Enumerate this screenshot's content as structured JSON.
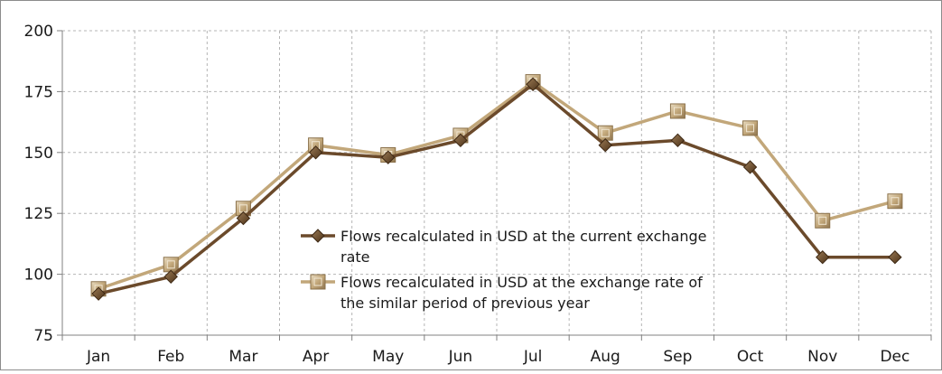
{
  "chart_data": {
    "type": "line",
    "title": "",
    "xlabel": "",
    "ylabel": "",
    "categories": [
      "Jan",
      "Feb",
      "Mar",
      "Apr",
      "May",
      "Jun",
      "Jul",
      "Aug",
      "Sep",
      "Oct",
      "Nov",
      "Dec"
    ],
    "ylim": [
      75,
      200
    ],
    "yticks": [
      "75",
      "100",
      "125",
      "150",
      "175",
      "200"
    ],
    "grid": true,
    "legend_position": "center",
    "series": [
      {
        "name_lines": [
          "Flows recalculated in USD at the current exchange",
          "rate"
        ],
        "marker": "diamond",
        "color": "#6b4a2b",
        "values": [
          92,
          99,
          123,
          150,
          148,
          155,
          178,
          153,
          155,
          144,
          107,
          107
        ]
      },
      {
        "name_lines": [
          "Flows recalculated in USD at the exchange rate of",
          "the similar period of previous year"
        ],
        "marker": "square",
        "color": "#c2a77a",
        "values": [
          94,
          104,
          127,
          153,
          149,
          157,
          179,
          158,
          167,
          160,
          122,
          130
        ]
      }
    ]
  }
}
